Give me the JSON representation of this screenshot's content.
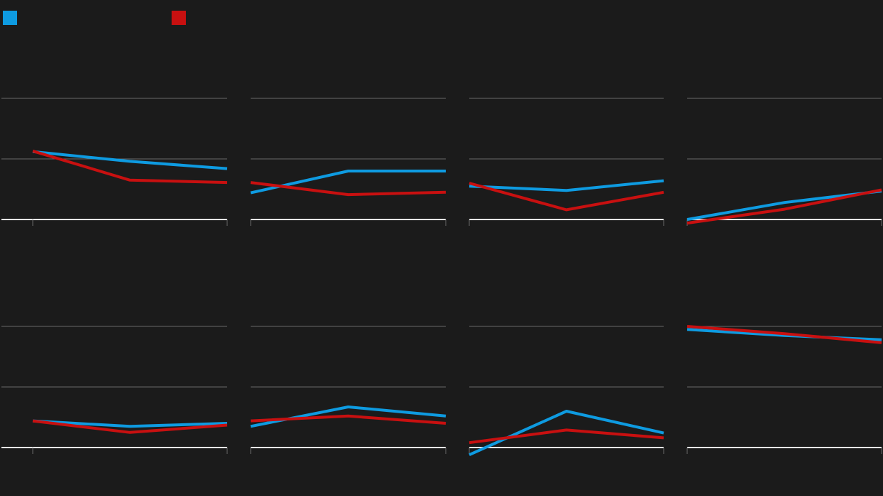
{
  "legend": {
    "items": [
      {
        "label": "",
        "color": "#0e9be1"
      },
      {
        "label": "",
        "color": "#c81010"
      }
    ]
  },
  "chart_data": {
    "type": "line",
    "rows": 2,
    "cols": 4,
    "ylim": [
      0,
      2
    ],
    "gridlines": [
      1,
      2
    ],
    "grid": true,
    "legend_position": "top-left",
    "colors": {
      "series_a": "#0e9be1",
      "series_b": "#c81010",
      "gridline": "#6a6a6a",
      "baseline": "#e6e6e6"
    },
    "panels": [
      {
        "series": [
          {
            "values": [
              1.12,
              0.96,
              0.84
            ]
          },
          {
            "values": [
              1.13,
              0.65,
              0.61
            ]
          }
        ]
      },
      {
        "series": [
          {
            "values": [
              0.44,
              0.8,
              0.8
            ]
          },
          {
            "values": [
              0.61,
              0.41,
              0.45
            ]
          }
        ]
      },
      {
        "series": [
          {
            "values": [
              0.55,
              0.48,
              0.64
            ]
          },
          {
            "values": [
              0.6,
              0.16,
              0.45
            ]
          }
        ]
      },
      {
        "series": [
          {
            "values": [
              0.0,
              0.28,
              0.47
            ]
          },
          {
            "values": [
              -0.06,
              0.17,
              0.49
            ]
          }
        ]
      },
      {
        "series": [
          {
            "values": [
              0.44,
              0.35,
              0.4
            ]
          },
          {
            "values": [
              0.44,
              0.25,
              0.37
            ]
          }
        ]
      },
      {
        "series": [
          {
            "values": [
              0.35,
              0.67,
              0.52
            ]
          },
          {
            "values": [
              0.44,
              0.52,
              0.4
            ]
          }
        ]
      },
      {
        "series": [
          {
            "values": [
              -0.12,
              0.6,
              0.24
            ]
          },
          {
            "values": [
              0.08,
              0.29,
              0.16
            ]
          }
        ]
      },
      {
        "series": [
          {
            "values": [
              1.95,
              1.85,
              1.78
            ]
          },
          {
            "values": [
              2.0,
              1.88,
              1.73
            ]
          }
        ]
      }
    ]
  }
}
